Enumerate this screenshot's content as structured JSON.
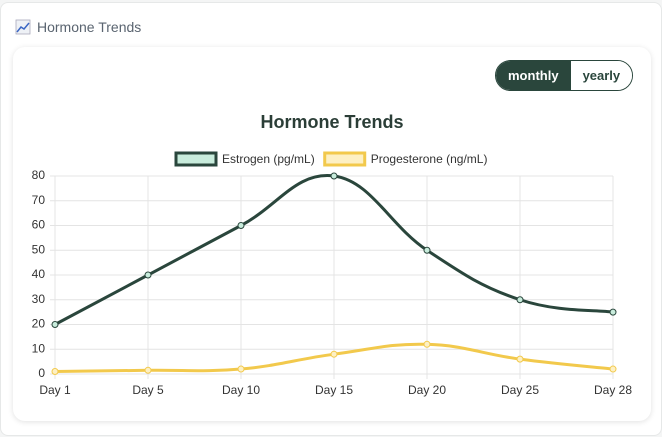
{
  "header": {
    "title": "Hormone Trends"
  },
  "toggle": {
    "options": [
      "monthly",
      "yearly"
    ],
    "active": 0
  },
  "chart_data": {
    "type": "line",
    "title": "Hormone Trends",
    "categories": [
      "Day 1",
      "Day 5",
      "Day 10",
      "Day 15",
      "Day 20",
      "Day 25",
      "Day 28"
    ],
    "series": [
      {
        "name": "Estrogen (pg/mL)",
        "color": "#2a463c",
        "fill": "#c8ecdc",
        "values": [
          20,
          40,
          60,
          80,
          50,
          30,
          25
        ]
      },
      {
        "name": "Progesterone (ng/mL)",
        "color": "#f2c94c",
        "fill": "#fdf0c4",
        "values": [
          1,
          1.5,
          2,
          8,
          12,
          6,
          2
        ]
      }
    ],
    "ylim": [
      0,
      80
    ],
    "yticks": [
      0,
      10,
      20,
      30,
      40,
      50,
      60,
      70,
      80
    ],
    "grid": true,
    "legend": "top"
  }
}
